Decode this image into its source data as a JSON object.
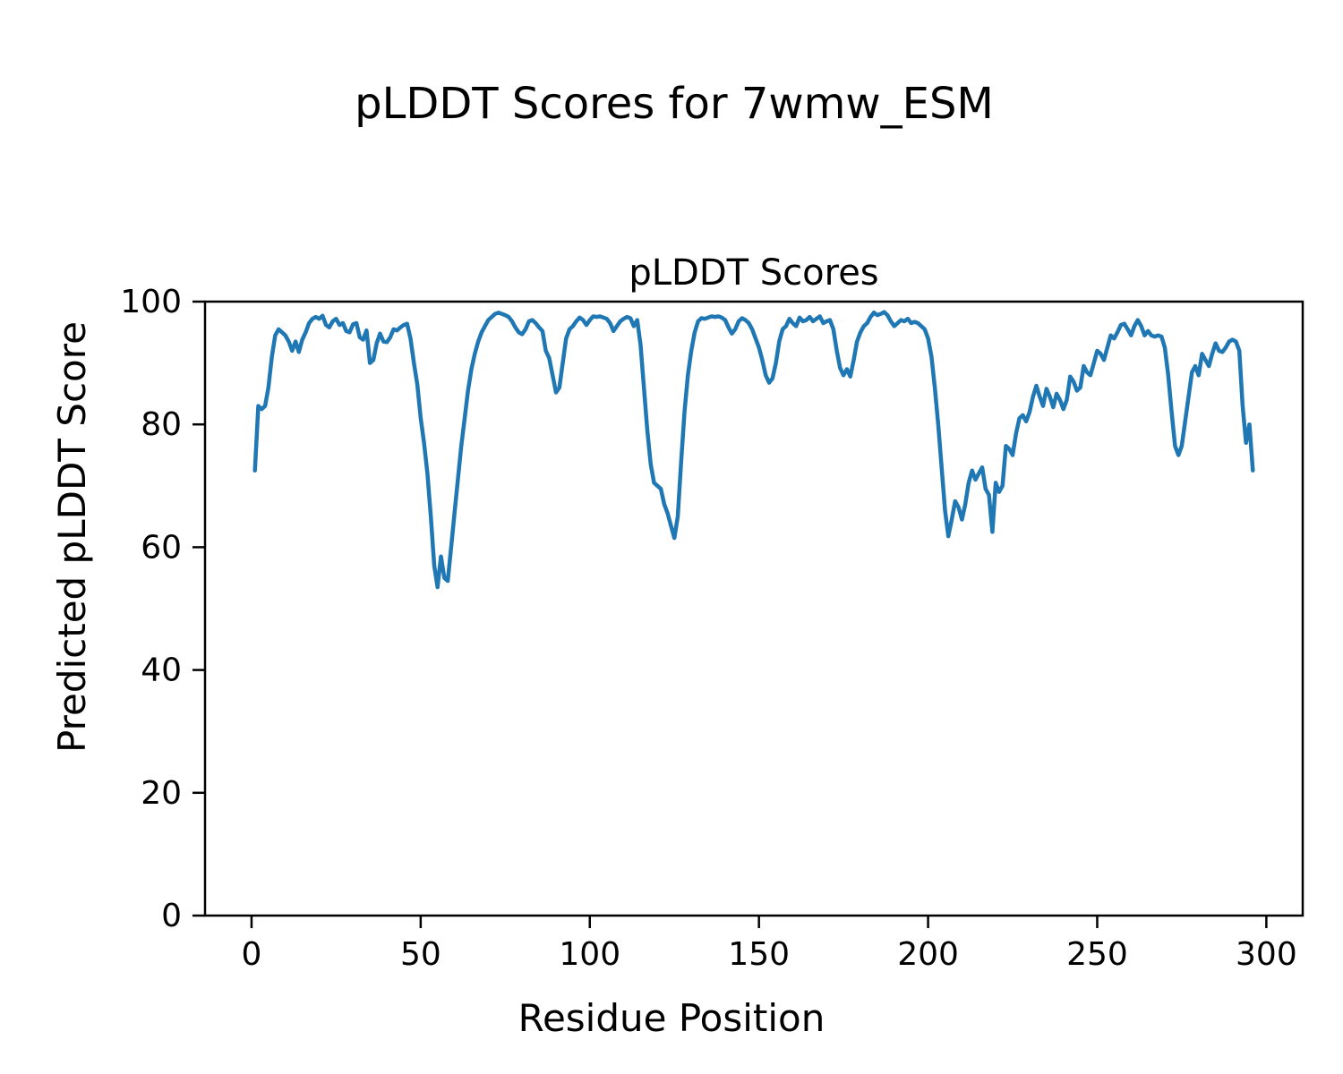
{
  "figure": {
    "suptitle": "pLDDT Scores for 7wmw_ESM"
  },
  "chart_data": {
    "type": "line",
    "title": "pLDDT Scores",
    "xlabel": "Residue Position",
    "ylabel": "Predicted pLDDT Score",
    "xlim": [
      -13.75,
      310.75
    ],
    "ylim": [
      0,
      100
    ],
    "x_ticks": [
      0,
      50,
      100,
      150,
      200,
      250,
      300
    ],
    "y_ticks": [
      0,
      20,
      40,
      60,
      80,
      100
    ],
    "grid": false,
    "legend": "none",
    "series": [
      {
        "name": "pLDDT",
        "color": "#1f77b4",
        "x_start": 1,
        "x_step": 1,
        "values": [
          72.5,
          83,
          82.5,
          83,
          86,
          91,
          94.5,
          95.5,
          95,
          94.5,
          93.5,
          92,
          93.5,
          91.8,
          93.8,
          95,
          96.5,
          97.2,
          97.5,
          97.2,
          97.7,
          96.2,
          95.8,
          96.8,
          97.2,
          96.2,
          96.5,
          95.2,
          95,
          96.3,
          96.5,
          94.2,
          93.8,
          95.3,
          90,
          90.5,
          93.2,
          94.8,
          93.5,
          93.4,
          94.2,
          95.5,
          95.3,
          95.8,
          96.2,
          96.4,
          94,
          90,
          86.5,
          81,
          77,
          72,
          65,
          57,
          53.5,
          58.5,
          55,
          54.5,
          60,
          65.5,
          71,
          76.5,
          81,
          85.5,
          89,
          91.5,
          93.5,
          95,
          96,
          97,
          97.5,
          98,
          98.2,
          98,
          97.8,
          97.5,
          96.8,
          95.8,
          95,
          94.7,
          95.5,
          96.8,
          97,
          96.5,
          95.8,
          95.2,
          92,
          90.8,
          88,
          85.2,
          86,
          90,
          94,
          95.5,
          96,
          96.8,
          97.4,
          97,
          96.2,
          97,
          97.6,
          97.5,
          97.6,
          97.4,
          97.2,
          96.5,
          95.2,
          96,
          96.8,
          97.2,
          97.5,
          97.3,
          96,
          97,
          93,
          86,
          79,
          73.5,
          70.5,
          70,
          69.5,
          67,
          65.5,
          63.5,
          61.5,
          65,
          74,
          82,
          88,
          92,
          95,
          96.8,
          97.3,
          97.2,
          97.4,
          97.6,
          97.5,
          97.6,
          97.4,
          97,
          95.8,
          94.8,
          95.5,
          96.8,
          97.3,
          97,
          96.5,
          95.5,
          94,
          92.5,
          90.5,
          88,
          86.8,
          87.5,
          90,
          93.5,
          95.5,
          96,
          97.2,
          96.5,
          96,
          97.4,
          96.8,
          97,
          97.5,
          96.8,
          97.2,
          97.6,
          96.5,
          96.8,
          97,
          95.5,
          92,
          89.2,
          88,
          89,
          87.8,
          90.5,
          93.5,
          95,
          96,
          96.5,
          97.5,
          98.2,
          97.8,
          98,
          98.3,
          97.8,
          96.8,
          96,
          96.5,
          97,
          96.8,
          97.2,
          96.5,
          96.7,
          96.5,
          96,
          95.5,
          94,
          91,
          86,
          80,
          73,
          66,
          61.8,
          64.5,
          67.5,
          66.5,
          64.5,
          67,
          70.5,
          72.5,
          71,
          72,
          73,
          69.5,
          68.5,
          62.5,
          70.5,
          69,
          70,
          76.5,
          76,
          75,
          78.5,
          81,
          81.5,
          80.5,
          82,
          84.5,
          86.3,
          84.5,
          83,
          85.8,
          84.5,
          82.8,
          85,
          84,
          82.5,
          84,
          87.8,
          87,
          85.5,
          86,
          89.5,
          88.5,
          88,
          90,
          92,
          91.5,
          90.5,
          92.5,
          94.5,
          94,
          95,
          96.2,
          96.4,
          95.5,
          94.5,
          96,
          97,
          96,
          94.5,
          95.2,
          94.5,
          94.3,
          94.5,
          94.3,
          92.5,
          88,
          82,
          76.5,
          75,
          76.5,
          80.5,
          84.5,
          88.5,
          89.5,
          88,
          91.5,
          90.5,
          89.5,
          91.5,
          93.2,
          92,
          91.8,
          92.5,
          93.5,
          93.8,
          93.5,
          92,
          83,
          77,
          80,
          72.5
        ]
      }
    ]
  }
}
